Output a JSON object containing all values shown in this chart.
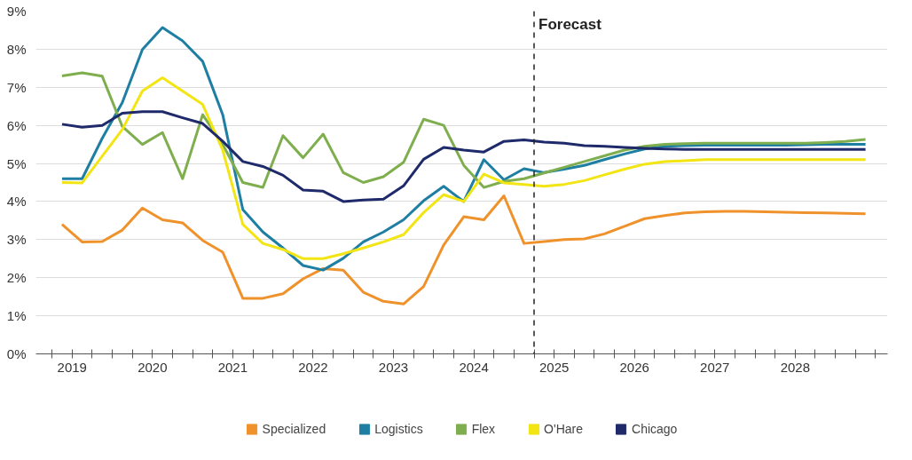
{
  "chart_data": {
    "type": "line",
    "x": [
      2019.375,
      2019.625,
      2019.875,
      2020.125,
      2020.375,
      2020.625,
      2020.875,
      2021.125,
      2021.375,
      2021.625,
      2021.875,
      2022.125,
      2022.375,
      2022.625,
      2022.875,
      2023.125,
      2023.375,
      2023.625,
      2023.875,
      2024.125,
      2024.375,
      2024.625,
      2024.875,
      2025.125,
      2025.375,
      2025.625,
      2025.875,
      2026.125,
      2026.375,
      2026.625,
      2026.875,
      2027.125,
      2027.375,
      2027.625,
      2027.875,
      2028.125,
      2028.375,
      2028.625,
      2028.875,
      2029.125,
      2029.375
    ],
    "series": [
      {
        "name": "Specialized",
        "color": "#f0922b",
        "values": [
          3.4,
          2.94,
          2.95,
          3.25,
          3.83,
          3.52,
          3.44,
          2.98,
          2.67,
          1.46,
          1.46,
          1.58,
          1.97,
          2.24,
          2.2,
          1.62,
          1.38,
          1.31,
          1.77,
          2.86,
          3.6,
          3.52,
          4.15,
          2.9,
          2.95,
          3.0,
          3.02,
          3.15,
          3.35,
          3.55,
          3.63,
          3.7,
          3.73,
          3.74,
          3.74,
          3.73,
          3.72,
          3.71,
          3.7,
          3.69,
          3.68
        ]
      },
      {
        "name": "Logistics",
        "color": "#1f7fa3",
        "values": [
          4.6,
          4.6,
          5.66,
          6.6,
          7.99,
          8.57,
          8.22,
          7.68,
          6.28,
          3.79,
          3.2,
          2.78,
          2.32,
          2.2,
          2.51,
          2.94,
          3.2,
          3.52,
          4.02,
          4.4,
          4.0,
          5.1,
          4.57,
          4.86,
          4.76,
          4.85,
          4.95,
          5.1,
          5.25,
          5.38,
          5.45,
          5.47,
          5.48,
          5.48,
          5.48,
          5.48,
          5.48,
          5.49,
          5.5,
          5.5,
          5.5
        ]
      },
      {
        "name": "Flex",
        "color": "#7fae4e",
        "values": [
          7.3,
          7.38,
          7.29,
          5.97,
          5.5,
          5.81,
          4.6,
          6.28,
          5.5,
          4.5,
          4.37,
          5.73,
          5.15,
          5.77,
          4.76,
          4.5,
          4.65,
          5.03,
          6.16,
          6.0,
          4.95,
          4.37,
          4.53,
          4.6,
          4.75,
          4.9,
          5.05,
          5.2,
          5.35,
          5.45,
          5.5,
          5.52,
          5.53,
          5.53,
          5.53,
          5.53,
          5.53,
          5.53,
          5.55,
          5.58,
          5.63
        ]
      },
      {
        "name": "O'Hare",
        "color": "#f2e513",
        "values": [
          4.5,
          4.49,
          5.19,
          5.89,
          6.9,
          7.25,
          6.9,
          6.55,
          5.35,
          3.4,
          2.9,
          2.74,
          2.5,
          2.5,
          2.63,
          2.78,
          2.94,
          3.13,
          3.71,
          4.18,
          4.0,
          4.72,
          4.49,
          4.45,
          4.4,
          4.45,
          4.55,
          4.7,
          4.85,
          4.98,
          5.05,
          5.07,
          5.1,
          5.1,
          5.1,
          5.1,
          5.1,
          5.1,
          5.1,
          5.1,
          5.1
        ]
      },
      {
        "name": "Chicago",
        "color": "#1f2a6b",
        "values": [
          6.03,
          5.95,
          6.0,
          6.32,
          6.36,
          6.36,
          6.2,
          6.05,
          5.58,
          5.05,
          4.92,
          4.69,
          4.3,
          4.27,
          4.0,
          4.04,
          4.06,
          4.41,
          5.11,
          5.42,
          5.35,
          5.3,
          5.58,
          5.62,
          5.56,
          5.53,
          5.47,
          5.45,
          5.42,
          5.4,
          5.38,
          5.37,
          5.37,
          5.37,
          5.37,
          5.37,
          5.37,
          5.37,
          5.37,
          5.37,
          5.37
        ]
      }
    ],
    "xlim": [
      2019.05,
      2029.65
    ],
    "xticks": [
      {
        "value": 2019.25,
        "label": null
      },
      {
        "value": 2019.5,
        "label": "2019"
      },
      {
        "value": 2019.75,
        "label": null
      },
      {
        "value": 2020,
        "label": null
      },
      {
        "value": 2020.25,
        "label": null
      },
      {
        "value": 2020.5,
        "label": "2020"
      },
      {
        "value": 2020.75,
        "label": null
      },
      {
        "value": 2021,
        "label": null
      },
      {
        "value": 2021.25,
        "label": null
      },
      {
        "value": 2021.5,
        "label": "2021"
      },
      {
        "value": 2021.75,
        "label": null
      },
      {
        "value": 2022,
        "label": null
      },
      {
        "value": 2022.25,
        "label": null
      },
      {
        "value": 2022.5,
        "label": "2022"
      },
      {
        "value": 2022.75,
        "label": null
      },
      {
        "value": 2023,
        "label": null
      },
      {
        "value": 2023.25,
        "label": null
      },
      {
        "value": 2023.5,
        "label": "2023"
      },
      {
        "value": 2023.75,
        "label": null
      },
      {
        "value": 2024,
        "label": null
      },
      {
        "value": 2024.25,
        "label": null
      },
      {
        "value": 2024.5,
        "label": "2024"
      },
      {
        "value": 2024.75,
        "label": null
      },
      {
        "value": 2025,
        "label": null
      },
      {
        "value": 2025.25,
        "label": null
      },
      {
        "value": 2025.5,
        "label": "2025"
      },
      {
        "value": 2025.75,
        "label": null
      },
      {
        "value": 2026,
        "label": null
      },
      {
        "value": 2026.25,
        "label": null
      },
      {
        "value": 2026.5,
        "label": "2026"
      },
      {
        "value": 2026.75,
        "label": null
      },
      {
        "value": 2027,
        "label": null
      },
      {
        "value": 2027.25,
        "label": null
      },
      {
        "value": 2027.5,
        "label": "2027"
      },
      {
        "value": 2027.75,
        "label": null
      },
      {
        "value": 2028,
        "label": null
      },
      {
        "value": 2028.25,
        "label": null
      },
      {
        "value": 2028.5,
        "label": "2028"
      },
      {
        "value": 2028.75,
        "label": null
      },
      {
        "value": 2029,
        "label": null
      },
      {
        "value": 2029.25,
        "label": null
      },
      {
        "value": 2029.5,
        "label": null
      }
    ],
    "ylim": [
      0,
      9
    ],
    "yticks": [
      {
        "value": 0,
        "label": "0%"
      },
      {
        "value": 1,
        "label": "1%"
      },
      {
        "value": 2,
        "label": "2%"
      },
      {
        "value": 3,
        "label": "3%"
      },
      {
        "value": 4,
        "label": "4%"
      },
      {
        "value": 5,
        "label": "5%"
      },
      {
        "value": 6,
        "label": "6%"
      },
      {
        "value": 7,
        "label": "7%"
      },
      {
        "value": 8,
        "label": "8%"
      },
      {
        "value": 9,
        "label": "9%"
      }
    ],
    "ref_lines": [
      {
        "axis": "x",
        "value": 2025.25,
        "label": "Forecast",
        "color": "#222222",
        "line_style": "dashed"
      }
    ],
    "grid": "y",
    "legend": "bottom",
    "line_style": "solid",
    "marker": "none"
  }
}
